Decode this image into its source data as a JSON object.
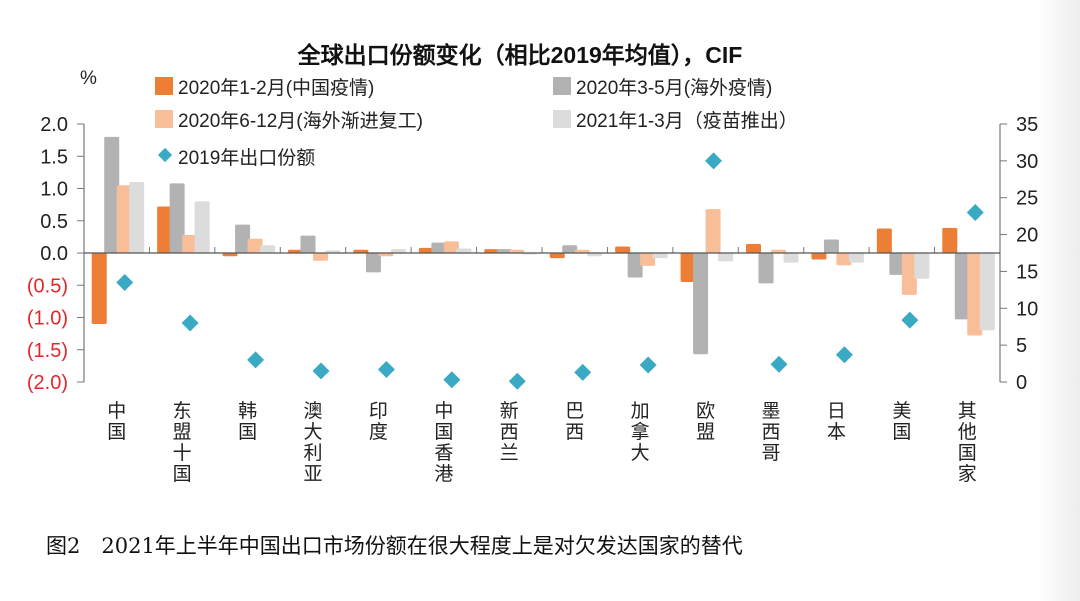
{
  "chart_data": {
    "type": "bar",
    "title": "全球出口份额变化（相比2019年均值），CIF",
    "ylabel": "%",
    "ylim": [
      -2.0,
      2.0
    ],
    "y2lim": [
      0,
      35
    ],
    "yticks": [
      "2.0",
      "1.5",
      "1.0",
      "0.5",
      "0.0",
      "(0.5)",
      "(1.0)",
      "(1.5)",
      "(2.0)"
    ],
    "ytick_values": [
      2.0,
      1.5,
      1.0,
      0.5,
      0.0,
      -0.5,
      -1.0,
      -1.5,
      -2.0
    ],
    "y2ticks": [
      "35",
      "30",
      "25",
      "20",
      "15",
      "10",
      "5",
      "0"
    ],
    "y2tick_values": [
      35,
      30,
      25,
      20,
      15,
      10,
      5,
      0
    ],
    "categories": [
      "中国",
      "东盟十国",
      "韩国",
      "澳大利亚",
      "印度",
      "中国香港",
      "新西兰",
      "巴西",
      "加拿大",
      "欧盟",
      "墨西哥",
      "日本",
      "美国",
      "其他国家"
    ],
    "series": [
      {
        "name": "2020年1-2月(中国疫情)",
        "color": "#ee7d35",
        "values": [
          -1.1,
          0.72,
          -0.05,
          0.05,
          0.05,
          0.08,
          0.06,
          -0.08,
          0.1,
          -0.45,
          0.14,
          -0.1,
          0.38,
          0.39
        ]
      },
      {
        "name": "2020年3-5月(海外疫情)",
        "color": "#b2b2b2",
        "values": [
          1.8,
          1.08,
          0.44,
          0.27,
          -0.3,
          0.16,
          0.06,
          0.12,
          -0.38,
          -1.57,
          -0.47,
          0.21,
          -0.34,
          -1.03
        ]
      },
      {
        "name": "2020年6-12月(海外渐进复工)",
        "color": "#f7be98",
        "values": [
          1.05,
          0.28,
          0.22,
          -0.12,
          -0.05,
          0.18,
          0.05,
          0.05,
          -0.2,
          0.68,
          0.05,
          -0.19,
          -0.65,
          -1.28
        ]
      },
      {
        "name": "2021年1-3月（疫苗推出）",
        "color": "#dcdcdc",
        "values": [
          1.1,
          0.8,
          0.12,
          0.04,
          0.06,
          0.07,
          -0.02,
          -0.05,
          -0.08,
          -0.13,
          -0.15,
          -0.15,
          -0.4,
          -1.2
        ]
      }
    ],
    "scatter": {
      "name": "2019年出口份额",
      "color": "#3aa9c4",
      "axis": "right",
      "values": [
        13.5,
        8,
        3,
        1.5,
        1.7,
        0.3,
        0.1,
        1.3,
        2.3,
        30,
        2.4,
        3.7,
        8.4,
        23
      ]
    },
    "legend_placement": "top"
  },
  "caption": "图2　2021年上半年中国出口市场份额在很大程度上是对欠发达国家的替代"
}
